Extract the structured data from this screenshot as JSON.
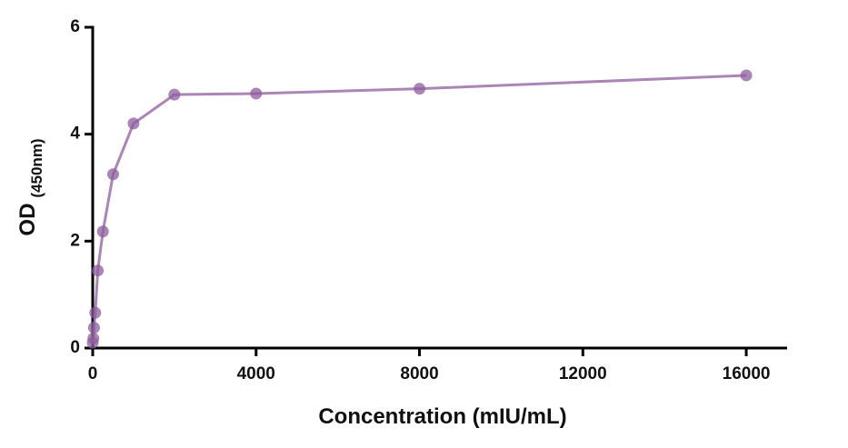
{
  "chart_data": {
    "type": "line",
    "x_label": "Concentration (mIU/mL)",
    "y_label": "OD",
    "y_label_sub": "(450nm)",
    "x": [
      0,
      15.625,
      31.25,
      62.5,
      125,
      250,
      500,
      1000,
      2000,
      4000,
      8000,
      16000
    ],
    "series": [
      {
        "color": "#8e5d9f",
        "values": [
          0.1,
          0.18,
          0.38,
          0.66,
          1.45,
          2.18,
          3.25,
          4.2,
          4.74,
          4.76,
          4.85,
          5.1
        ]
      }
    ],
    "xlim": [
      0,
      17000
    ],
    "ylim": [
      0,
      6
    ],
    "xticks": [
      0,
      4000,
      8000,
      12000,
      16000
    ],
    "yticks": [
      0,
      2,
      4,
      6
    ],
    "grid": false
  }
}
